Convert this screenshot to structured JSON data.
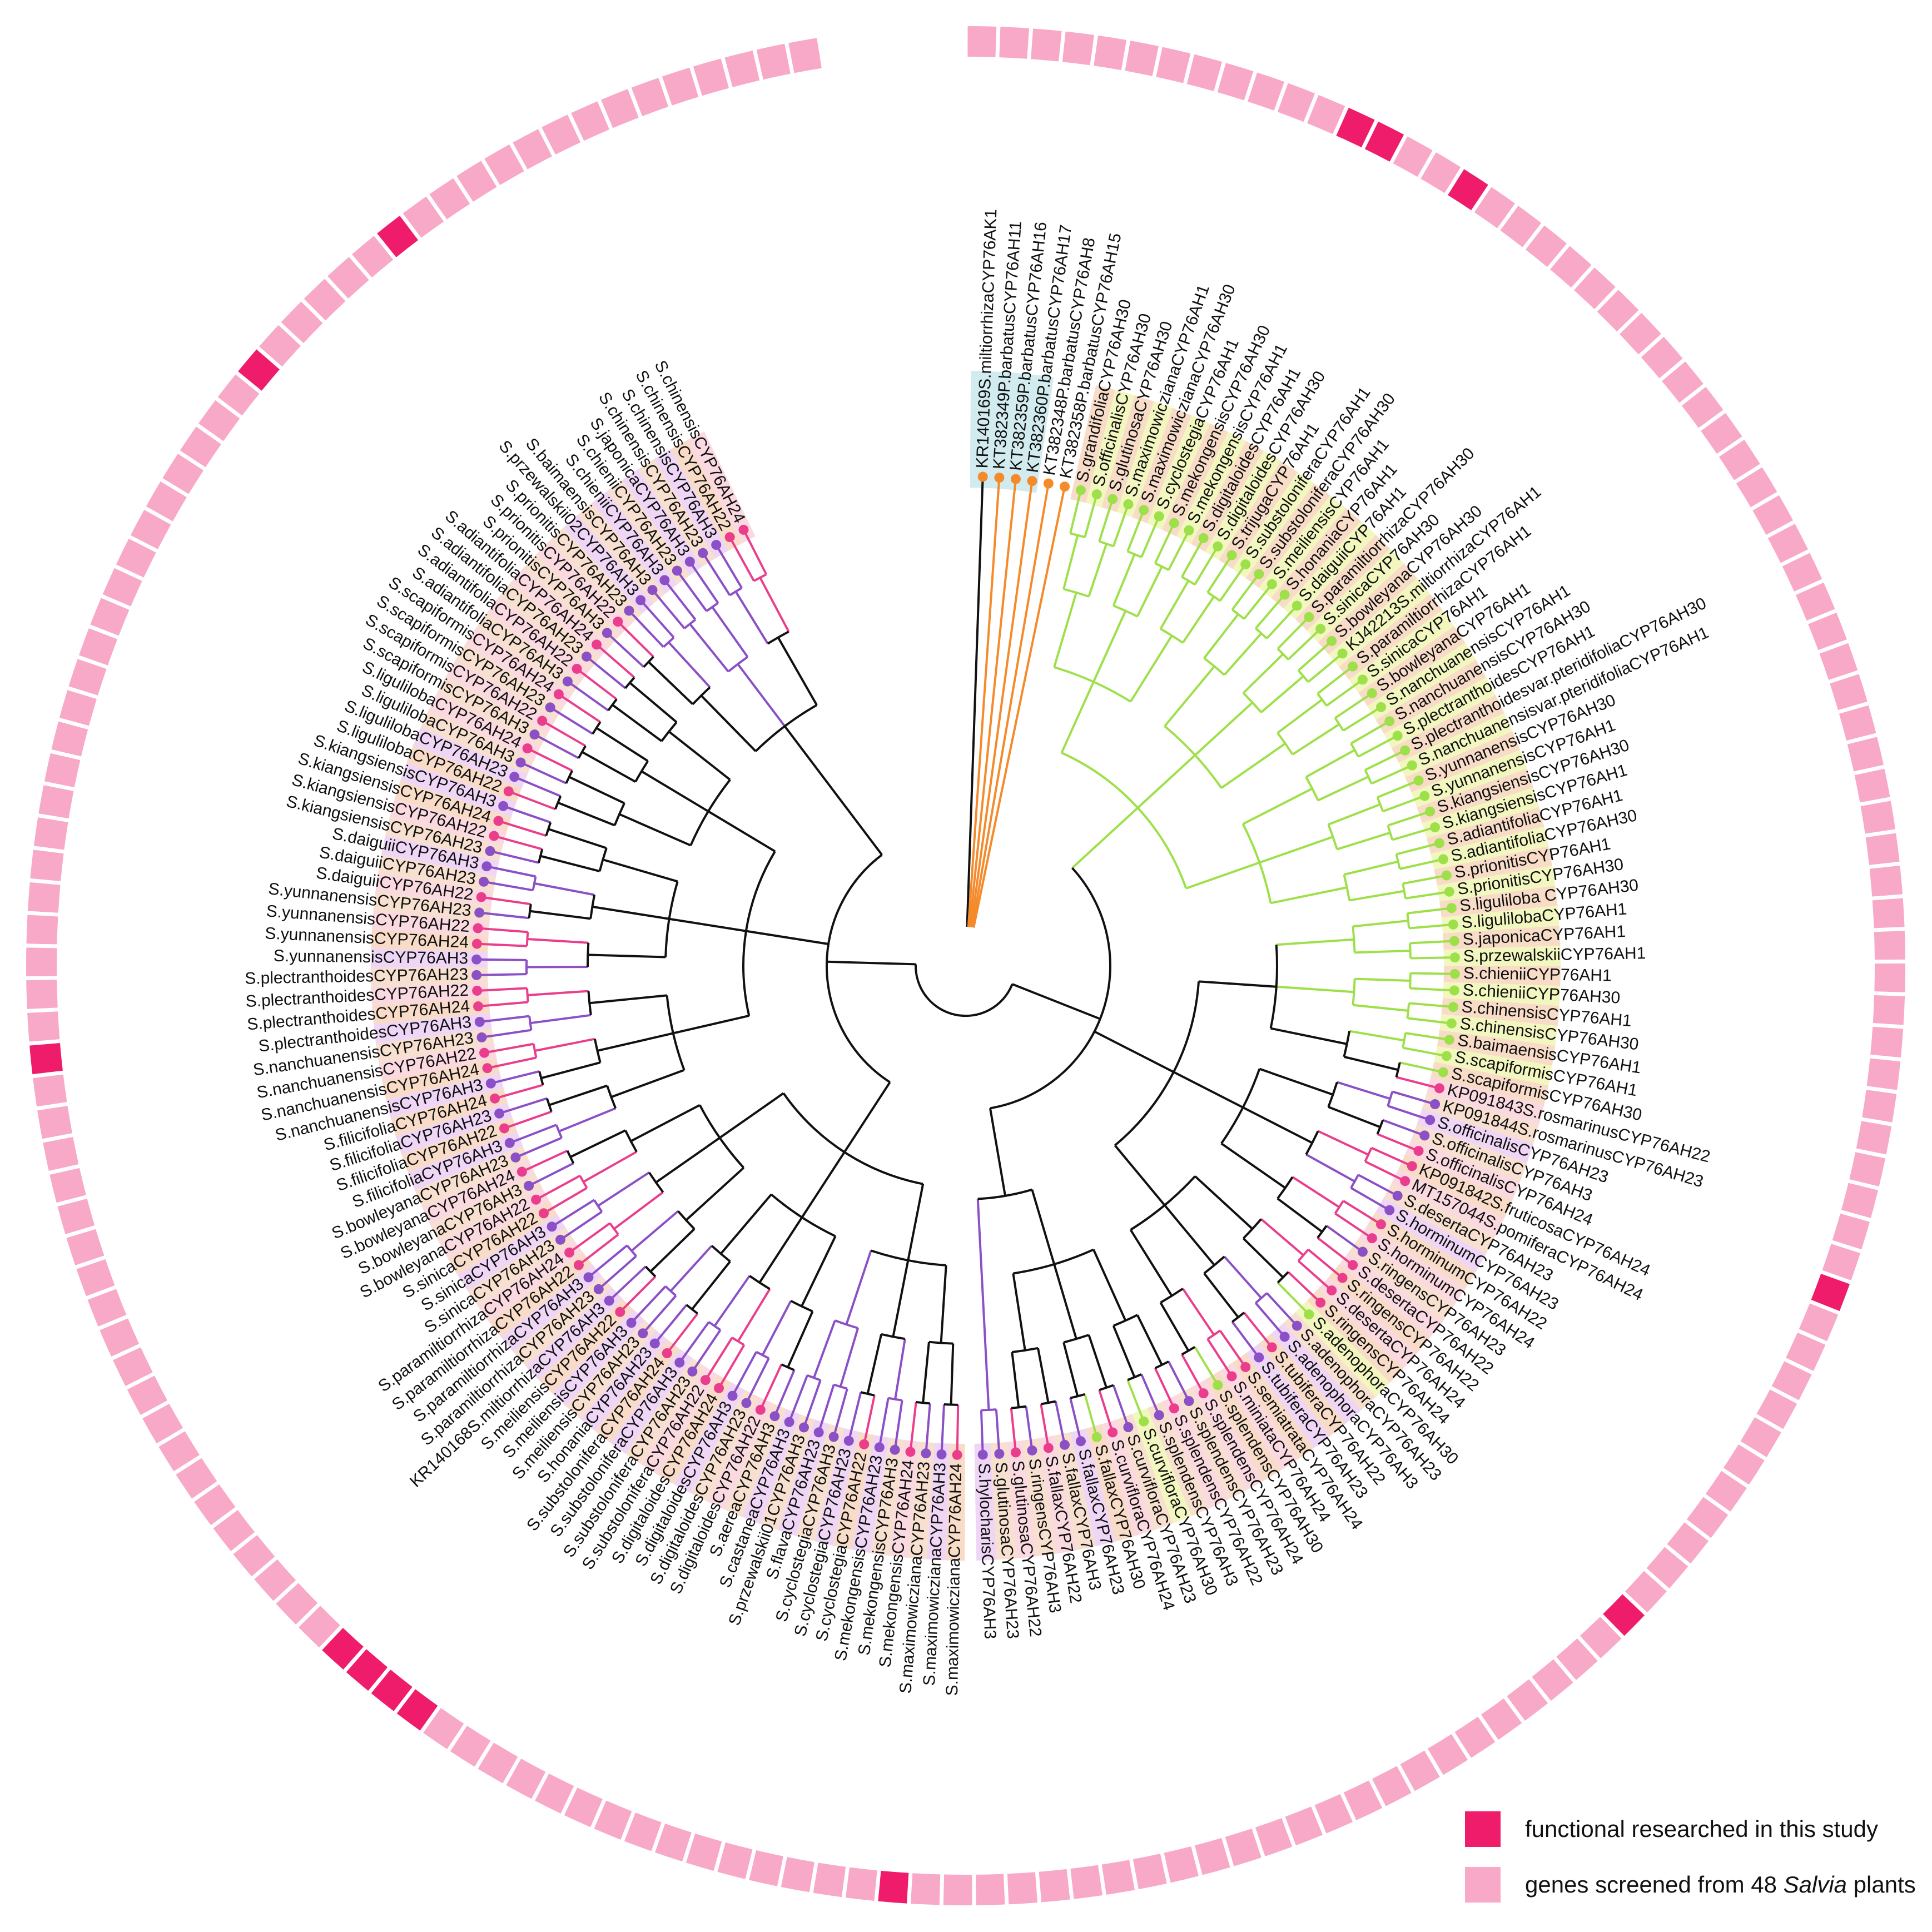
{
  "colors": {
    "ring_functional": "#ee1c6a",
    "ring_screened": "#f8a9c8",
    "clade_AH1_AH30": "#9ee04a",
    "clade_AH22_AH24": "#ea3e8c",
    "clade_AH3_AH23": "#8b4fc6",
    "clade_default": "#111111",
    "outgroup": "#f58a2a"
  },
  "tree": {
    "right_labels": [
      "KR140169S.miltiorrhizaCYP76AK1",
      "KT382349P.barbatusCYP76AH11",
      "KT382359P.barbatusCYP76AH16",
      "KT382360P.barbatusCYP76AH17",
      "KT382348P.barbatusCYP76AH8",
      "KT382358P.barbatusCYP76AH15",
      "S.grandifoliaCYP76AH30",
      "S.officinalisCYP76AH30",
      "S.glutinosaCYP76AH30",
      "S.maximowiczianaCYP76AH1",
      "S.maximowiczianaCYP76AH30",
      "S.cyclostegiaCYP76AH1",
      "S.mekongensisCYP76AH30",
      "S.mekongensisCYP76AH1",
      "S.digitaloidesCYP76AH1",
      "S.digitaloidesCYP76AH30",
      "S.trijugaCYP76AH1",
      "S.substoloniferaCYP76AH1",
      "S.substoloniferaCYP76AH30",
      "S.meiliensisCYP76AH1",
      "S.honaniaCYP76AH1",
      "S.daiguiiCYP76AH1",
      "S.paramiltiorrhizaCYP76AH30",
      "S.sinicaCYP76AH30",
      "S.bowleyanaCYP76AH30",
      "KJ42213S.miltiorrhizaCYP76AH1",
      "S.paramiltiorrhizaCYP76AH1",
      "S.sinicaCYP76AH1",
      "S.bowleyanaCYP76AH1",
      "S.nanchuanensisCYP76AH1",
      "S.nanchuanensisCYP76AH30",
      "S.plectranthoidesCYP76AH1",
      "S.plectranthoidesvar.pteridifoliaCYP76AH30",
      "S.nanchuanensisvar.pteridifoliaCYP76AH1",
      "S.yunnanensisCYP76AH30",
      "S.yunnanensisCYP76AH1",
      "S.kiangsiensisCYP76AH30",
      "S.kiangsiensisCYP76AH1",
      "S.adiantifoliaCYP76AH1",
      "S.adiantifoliaCYP76AH30",
      "S.prionitisCYP76AH1",
      "S.prionitisCYP76AH30",
      "S.liguliloba CYP76AH30",
      "S.ligulilobaCYP76AH1",
      "S.japonicaCYP76AH1",
      "S.przewalskiiCYP76AH1",
      "S.chieniiCYP76AH1",
      "S.chieniiCYP76AH30",
      "S.chinensisCYP76AH1",
      "S.chinensisCYP76AH30",
      "S.baimaensisCYP76AH1",
      "S.scapiformisCYP76AH1",
      "S.scapiformisCYP76AH30",
      "KP091843S.rosmarinusCYP76AH22",
      "KP091844S.rosmarinusCYP76AH23",
      "S.officinalisCYP76AH23",
      "S.officinalisCYP76AH3",
      "S.officinalisCYP76AH24",
      "KP091842S.fruticosaCYP76AH24",
      "MT157044S.pomiferaCYP76AH24",
      "S.desertaCYP76AH23",
      "S.horminumCYP76AH23",
      "S.horminumCYP76AH22",
      "S.horminumCYP76AH24",
      "S.ringensCYP76AH23",
      "S.desertaCYP76AH22",
      "S.ringensCYP76AH22",
      "S.desertaCYP76AH24",
      "S.ringensCYP76AH24",
      "S.adenophoraCYP76AH30",
      "S.adenophoraCYP76AH23",
      "S.adenophoraCYP76AH3",
      "S.tubiferaCYP76AH22",
      "S.tubiferaCYP76AH23",
      "S.semiatrataCYP76AH24",
      "S.miniataCYP76AH24",
      "S.splendensCYP76AH30",
      "S.splendensCYP76AH24",
      "S.splendensCYP76AH23",
      "S.splendensCYP76AH22",
      "S.splendensCYP76AH3",
      "S.curvifloraCYP76AH30",
      "S.curvifloraCYP76AH23",
      "S.curvifloraCYP76AH24",
      "S.fallaxCYP76AH30",
      "S.fallaxCYP76AH23",
      "S.fallaxCYP76AH3",
      "S.fallaxCYP76AH22",
      "S.ringensCYP76AH3",
      "S.glutinosaCYP76AH22",
      "S.glutinosaCYP76AH23",
      "S.hylocharisCYP76AH3"
    ],
    "left_labels": [
      "S.maximowiczianaCYP76AH24",
      "S.maximowiczianaCYP76AH3",
      "S.maximowiczianaCYP76AH23",
      "S.mekongensisCYP76AH24",
      "S.mekongensisCYP76AH3",
      "S.mekongensisCYP76AH23",
      "S.cyclostegiaCYP76AH22",
      "S.cyclostegiaCYP76AH23",
      "S.cyclostegiaCYP76AH3",
      "S.flavaCYP76AH23",
      "S.przewalskii01CYP76AH3",
      "S.castaneaCYP76AH3",
      "S.aereaCYP76AH3",
      "S.digitaloidesCYP76AH22",
      "S.digitaloidesCYP76AH23",
      "S.digitaloidesCYP76AH3",
      "S.digitaloidesCYP76AH24",
      "S.substoloniferaCYP76AH22",
      "S.substoloniferaCYP76AH23",
      "S.substoloniferaCYP76AH3",
      "S.substoloniferaCYP76AH24",
      "S.honaniaCYP76AH23",
      "S.meiliensisCYP76AH23",
      "S.meiliensisCYP76AH3",
      "S.meiliensisCYP76AH22",
      "KR140168S.miltiorrhizaCYP76AH3",
      "S.paramiltiorrhizaCYP76AH23",
      "S.paramiltiorrhizaCYP76AH3",
      "S.paramiltiorrhizaCYP76AH22",
      "S.paramiltiorrhizaCYP76AH24",
      "S.sinicaCYP76AH23",
      "S.sinicaCYP76AH3",
      "S.sinicaCYP76AH22",
      "S.bowleyanaCYP76AH22",
      "S.bowleyanaCYP76AH3",
      "S.bowleyanaCYP76AH24",
      "S.bowleyanaCYP76AH23",
      "S.filicifoliaCYP76AH3",
      "S.filicifoliaCYP76AH22",
      "S.filicifoliaCYP76AH23",
      "S.filicifoliaCYP76AH24",
      "S.nanchuanensisCYP76AH3",
      "S.nanchuanensisCYP76AH24",
      "S.nanchuanensisCYP76AH22",
      "S.nanchuanensisCYP76AH23",
      "S.plectranthoidesCYP76AH3",
      "S.plectranthoidesCYP76AH24",
      "S.plectranthoidesCYP76AH22",
      "S.plectranthoidesCYP76AH23",
      "S.yunnanensisCYP76AH3",
      "S.yunnanensisCYP76AH24",
      "S.yunnanensisCYP76AH22",
      "S.yunnanensisCYP76AH23",
      "S.daiguiiCYP76AH22",
      "S.daiguiiCYP76AH23",
      "S.daiguiiCYP76AH3",
      "S.kiangsiensisCYP76AH23",
      "S.kiangsiensisCYP76AH22",
      "S.kiangsiensisCYP76AH24",
      "S.kiangsiensisCYP76AH3",
      "S.ligulilobaCYP76AH22",
      "S.ligulilobaCYP76AH23",
      "S.ligulilobaCYP76AH3",
      "S.ligulilobaCYP76AH24",
      "S.scapiformisCYP76AH3",
      "S.scapiformisCYP76AH22",
      "S.scapiformisCYP76AH23",
      "S.scapiformisCYP76AH24",
      "S.adiantifoliaCYP76AH3",
      "S.adiantifoliaCYP76AH22",
      "S.adiantifoliaCYP76AH23",
      "S.adiantifoliaCYP76AH24",
      "S.prionitisCYP76AH3",
      "S.prionitisCYP76AH22",
      "S.prionitisCYP76AH23",
      "S.przewalskii02CYP76AH3",
      "S.baimaensisCYP76AH3",
      "S.chieniiCYP76AH3",
      "S.chieniiCYP76AH23",
      "S.japonicaCYP76AH3",
      "S.chinensisCYP76AH23",
      "S.chinensisCYP76AH3",
      "S.chinensisCYP76AH22",
      "S.chinensisCYP76AH24"
    ]
  },
  "ring": {
    "tile_count": 176,
    "functional_tiles": [
      12,
      13,
      16,
      55,
      67,
      92,
      108,
      109,
      110,
      111,
      132,
      155,
      161
    ]
  },
  "legend": {
    "functional_label": "functional researched in this study",
    "screened_label_prefix": "genes screened from 48 ",
    "screened_label_italic": "Salvia",
    "screened_label_suffix": " plants"
  }
}
